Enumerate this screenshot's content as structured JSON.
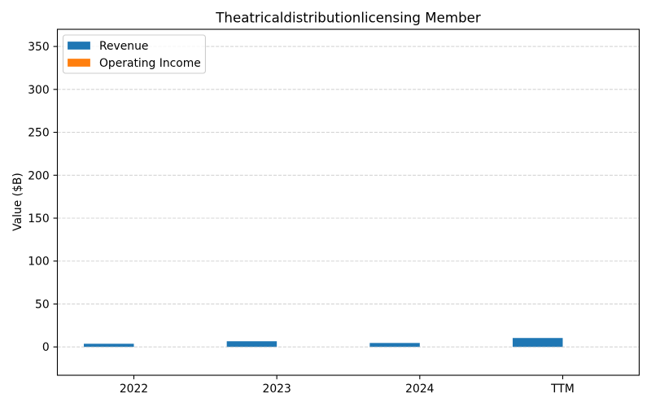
{
  "chart_data": {
    "type": "bar",
    "title": "Theatricaldistributionlicensing Member",
    "ylabel": "Value ($B)",
    "categories": [
      "2022",
      "2023",
      "2024",
      "TTM"
    ],
    "series": [
      {
        "name": "Revenue",
        "values": [
          3.7,
          6.6,
          4.6,
          10.4
        ],
        "color": "#1f77b4"
      },
      {
        "name": "Operating Income",
        "values": [
          0,
          0,
          0,
          0
        ],
        "color": "#ff7f0e"
      }
    ],
    "ylim": [
      -33,
      370
    ],
    "yticks": [
      0,
      50,
      100,
      150,
      200,
      250,
      300,
      350
    ],
    "grid": "y",
    "legend": "upper-left"
  }
}
